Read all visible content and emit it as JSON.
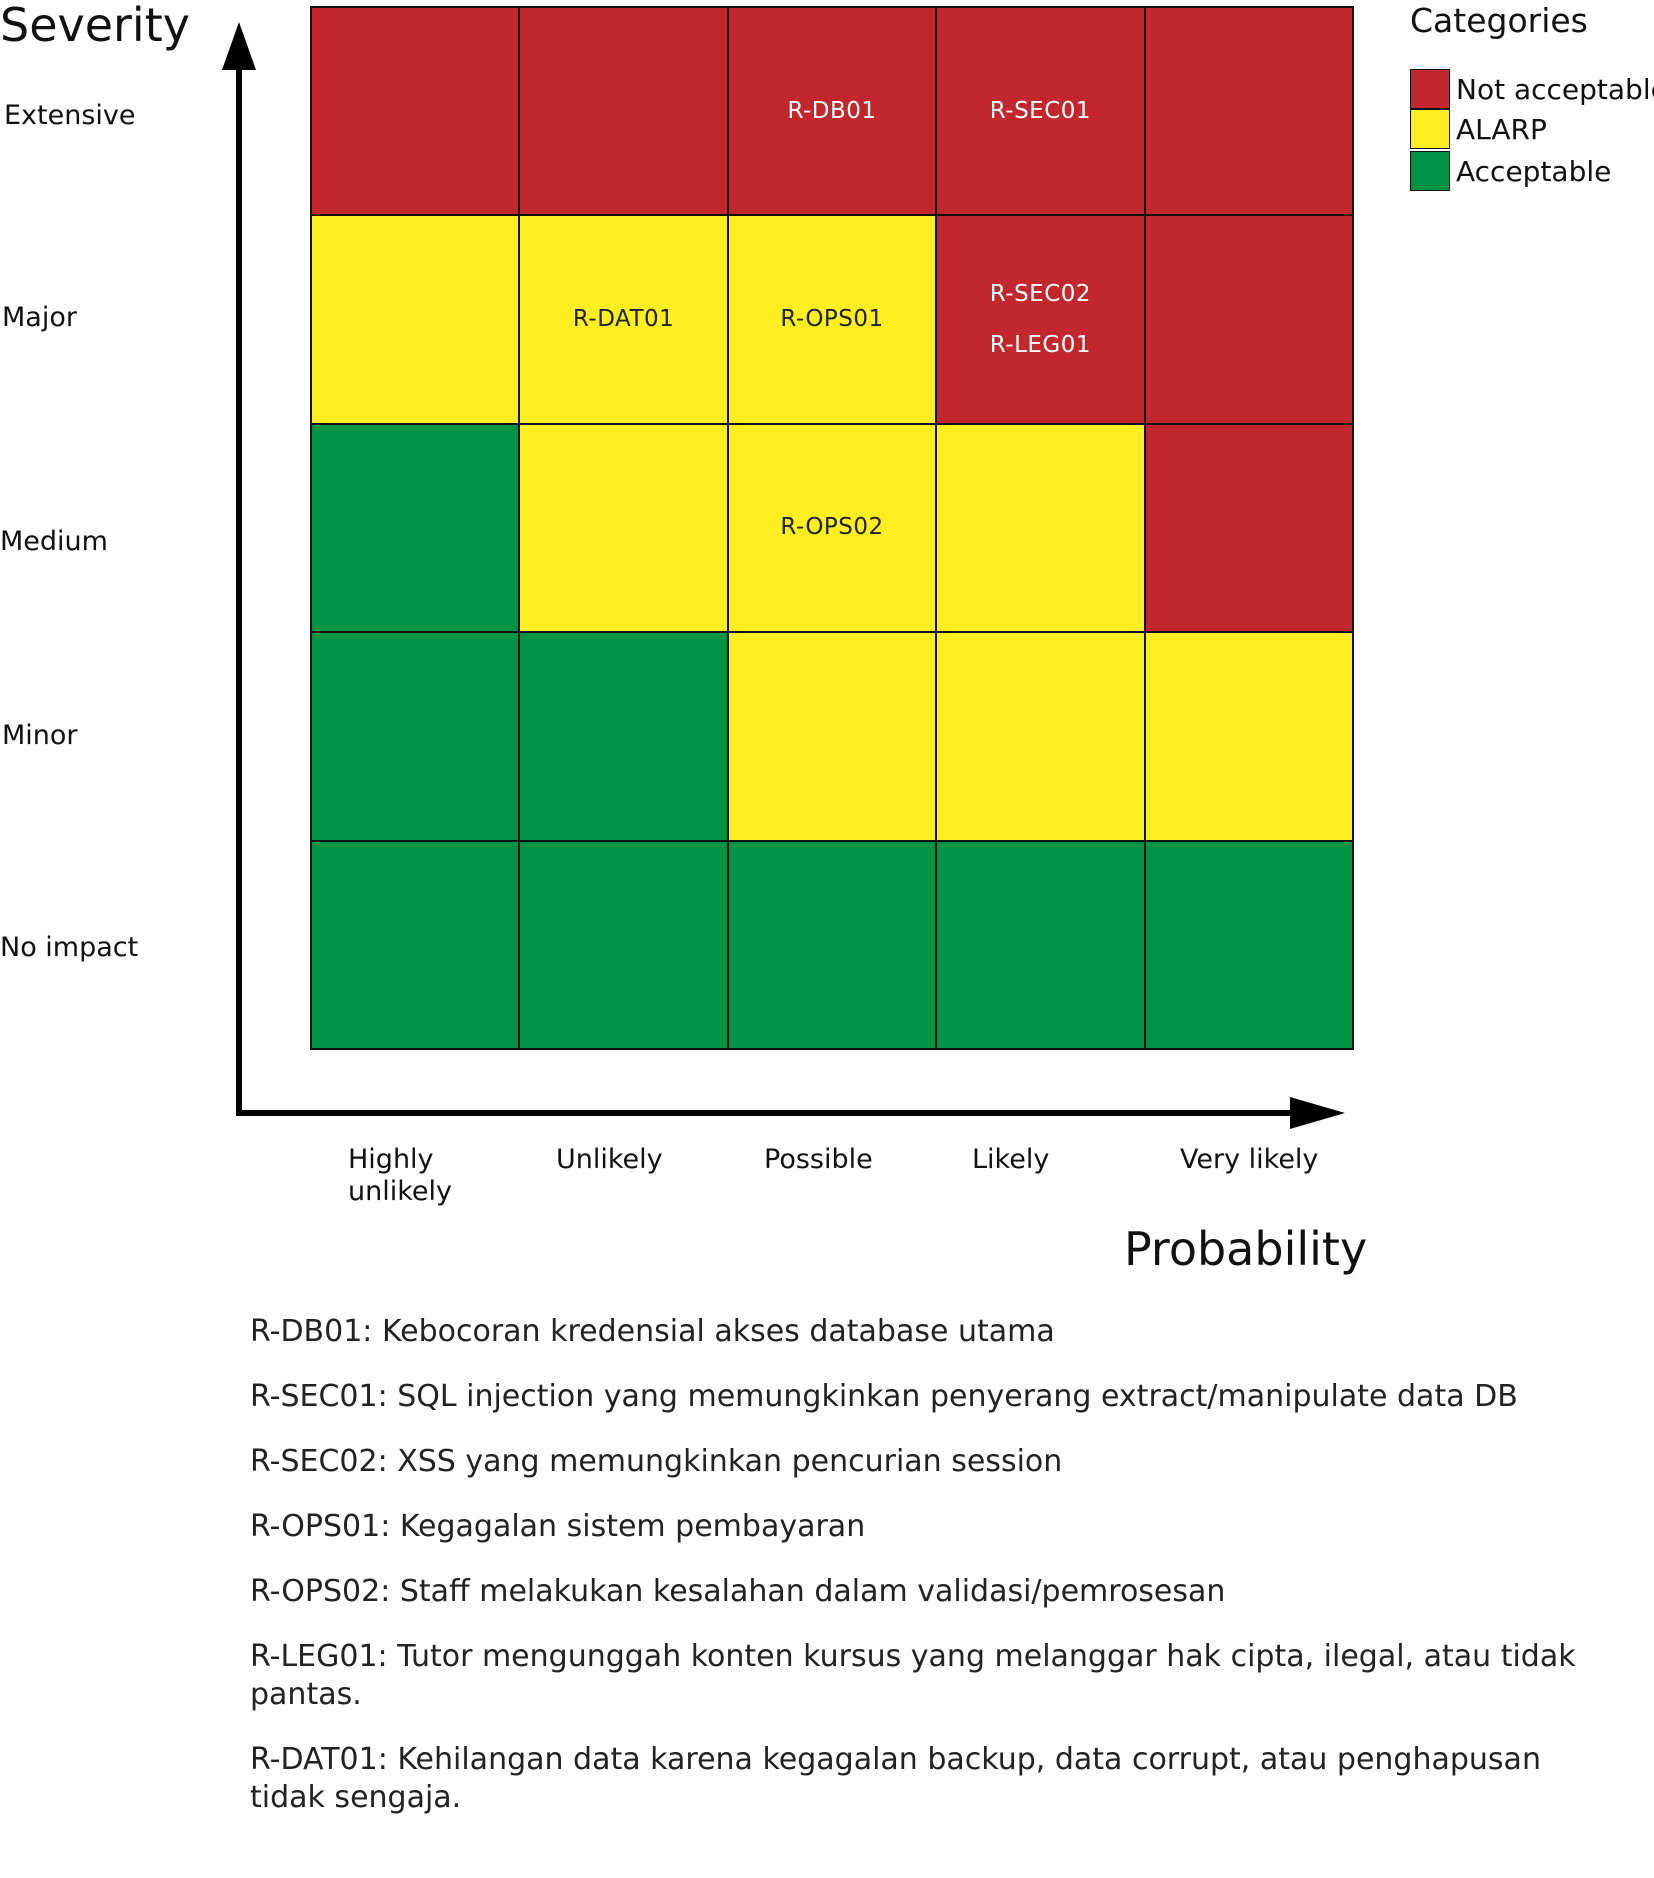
{
  "y_axis": {
    "title": "Severity",
    "levels": [
      "Extensive",
      "Major",
      "Medium",
      "Minor",
      "No impact"
    ]
  },
  "x_axis": {
    "title": "Probability",
    "levels": [
      "Highly unlikely",
      "Unlikely",
      "Possible",
      "Likely",
      "Very likely"
    ]
  },
  "legend": {
    "title": "Categories",
    "items": [
      {
        "key": "N",
        "label": "Not acceptable",
        "color": "#c1272d"
      },
      {
        "key": "A",
        "label": "ALARP",
        "color": "#fcee21"
      },
      {
        "key": "G",
        "label": "Acceptable",
        "color": "#009245"
      }
    ]
  },
  "matrix": {
    "rows": [
      {
        "severity": "Extensive",
        "cells": [
          {
            "category": "N",
            "risks": []
          },
          {
            "category": "N",
            "risks": []
          },
          {
            "category": "N",
            "risks": [
              "R-DB01"
            ]
          },
          {
            "category": "N",
            "risks": [
              "R-SEC01"
            ]
          },
          {
            "category": "N",
            "risks": []
          }
        ]
      },
      {
        "severity": "Major",
        "cells": [
          {
            "category": "A",
            "risks": []
          },
          {
            "category": "A",
            "risks": [
              "R-DAT01"
            ]
          },
          {
            "category": "A",
            "risks": [
              "R-OPS01"
            ]
          },
          {
            "category": "N",
            "risks": [
              "R-SEC02",
              "R-LEG01"
            ]
          },
          {
            "category": "N",
            "risks": []
          }
        ]
      },
      {
        "severity": "Medium",
        "cells": [
          {
            "category": "G",
            "risks": []
          },
          {
            "category": "A",
            "risks": []
          },
          {
            "category": "A",
            "risks": [
              "R-OPS02"
            ]
          },
          {
            "category": "A",
            "risks": []
          },
          {
            "category": "N",
            "risks": []
          }
        ]
      },
      {
        "severity": "Minor",
        "cells": [
          {
            "category": "G",
            "risks": []
          },
          {
            "category": "G",
            "risks": []
          },
          {
            "category": "A",
            "risks": []
          },
          {
            "category": "A",
            "risks": []
          },
          {
            "category": "A",
            "risks": []
          }
        ]
      },
      {
        "severity": "No impact",
        "cells": [
          {
            "category": "G",
            "risks": []
          },
          {
            "category": "G",
            "risks": []
          },
          {
            "category": "G",
            "risks": []
          },
          {
            "category": "G",
            "risks": []
          },
          {
            "category": "G",
            "risks": []
          }
        ]
      }
    ]
  },
  "risk_descriptions": [
    "R-DB01: Kebocoran kredensial akses database utama",
    "R-SEC01: SQL injection yang memungkinkan penyerang extract/manipulate data DB",
    "R-SEC02: XSS yang memungkinkan pencurian session",
    "R-OPS01: Kegagalan sistem pembayaran",
    "R-OPS02: Staff melakukan kesalahan dalam validasi/pemrosesan",
    "R-LEG01: Tutor mengunggah konten kursus yang melanggar hak cipta, ilegal, atau tidak pantas.",
    "R-DAT01: Kehilangan data karena kegagalan backup, data corrupt, atau penghapusan tidak sengaja."
  ]
}
